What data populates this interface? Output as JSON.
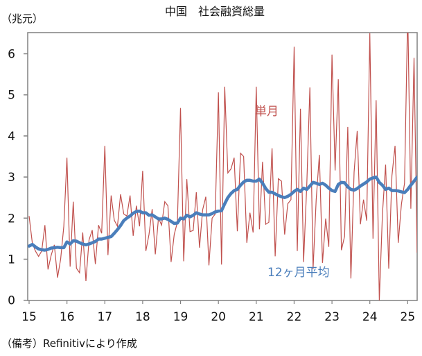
{
  "chart_data": {
    "type": "line",
    "title": "中国　社会融資総量",
    "ylabel": "（兆元）",
    "xlabel": "",
    "source_note": "（備考）Refinitivにより作成",
    "ylim": [
      0,
      6.5
    ],
    "xlim": [
      15,
      25.3
    ],
    "yticks": [
      "0",
      "1",
      "2",
      "3",
      "4",
      "5",
      "6"
    ],
    "xticks": [
      "15",
      "16",
      "17",
      "18",
      "19",
      "20",
      "21",
      "22",
      "23",
      "24",
      "25"
    ],
    "x_start": "2015-01",
    "frequency": "monthly",
    "grid": false,
    "series": [
      {
        "name": "単月",
        "color": "#c0504d",
        "values": [
          2.05,
          1.4,
          1.2,
          1.07,
          1.2,
          1.83,
          0.75,
          1.1,
          1.35,
          0.55,
          1.0,
          1.8,
          3.47,
          0.82,
          2.4,
          0.78,
          0.67,
          1.65,
          0.47,
          1.47,
          1.71,
          0.88,
          1.83,
          1.63,
          3.76,
          1.1,
          2.55,
          1.95,
          1.8,
          2.58,
          2.1,
          2.05,
          2.55,
          1.57,
          2.3,
          1.8,
          3.15,
          1.2,
          1.6,
          2.22,
          1.12,
          2.0,
          1.83,
          2.4,
          2.3,
          0.93,
          1.6,
          1.9,
          4.68,
          0.95,
          2.95,
          1.67,
          1.7,
          2.63,
          1.28,
          2.2,
          2.52,
          0.85,
          2.0,
          2.1,
          5.06,
          0.87,
          5.2,
          3.1,
          3.2,
          3.47,
          1.68,
          3.58,
          3.5,
          1.4,
          2.13,
          1.65,
          5.2,
          1.73,
          3.37,
          1.85,
          1.9,
          3.7,
          1.07,
          2.96,
          2.9,
          1.6,
          2.35,
          2.45,
          6.17,
          1.2,
          4.66,
          0.93,
          2.8,
          5.18,
          0.76,
          2.45,
          3.54,
          0.91,
          1.99,
          1.3,
          5.98,
          3.16,
          5.38,
          1.22,
          1.56,
          4.22,
          0.53,
          3.12,
          4.12,
          1.85,
          2.45,
          1.94,
          6.5,
          1.5,
          4.87,
          0.0,
          2.1,
          3.3,
          0.77,
          3.03,
          3.76,
          1.4,
          2.34,
          2.85,
          7.05,
          2.23,
          5.9,
          1.16
        ]
      },
      {
        "name": "12ヶ月平均",
        "color": "#4a7ebb",
        "values": [
          1.32,
          1.36,
          1.3,
          1.25,
          1.23,
          1.22,
          1.24,
          1.27,
          1.28,
          1.29,
          1.28,
          1.28,
          1.42,
          1.37,
          1.45,
          1.44,
          1.4,
          1.37,
          1.35,
          1.37,
          1.4,
          1.43,
          1.49,
          1.49,
          1.51,
          1.53,
          1.55,
          1.63,
          1.72,
          1.82,
          1.94,
          2.0,
          2.05,
          2.12,
          2.16,
          2.17,
          2.13,
          2.13,
          2.07,
          2.08,
          2.03,
          1.98,
          1.98,
          2.0,
          1.97,
          1.92,
          1.87,
          1.88,
          2.0,
          1.98,
          2.07,
          2.03,
          2.07,
          2.13,
          2.1,
          2.08,
          2.08,
          2.08,
          2.11,
          2.15,
          2.17,
          2.18,
          2.35,
          2.5,
          2.6,
          2.67,
          2.7,
          2.8,
          2.88,
          2.92,
          2.92,
          2.9,
          2.9,
          2.95,
          2.85,
          2.72,
          2.63,
          2.63,
          2.59,
          2.55,
          2.52,
          2.5,
          2.53,
          2.58,
          2.65,
          2.7,
          2.65,
          2.73,
          2.7,
          2.78,
          2.87,
          2.85,
          2.82,
          2.85,
          2.8,
          2.73,
          2.67,
          2.65,
          2.82,
          2.87,
          2.86,
          2.76,
          2.7,
          2.68,
          2.72,
          2.78,
          2.83,
          2.88,
          2.95,
          2.98,
          3.0,
          2.87,
          2.8,
          2.7,
          2.73,
          2.67,
          2.67,
          2.66,
          2.64,
          2.62,
          2.7,
          2.8,
          2.9,
          3.0
        ]
      }
    ]
  }
}
